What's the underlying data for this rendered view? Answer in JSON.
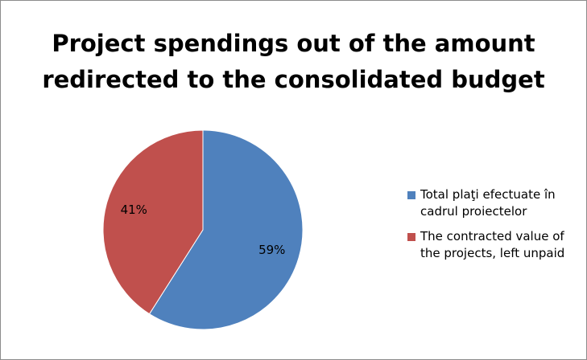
{
  "chart_data": {
    "type": "pie",
    "title_lines": [
      "Project spendings out of the amount",
      "redirected to the consolidated budget"
    ],
    "slices": [
      {
        "label": "Total plaţi efectuate în cadrul proiectelor",
        "value": 59,
        "display": "59%",
        "color": "#4F81BD"
      },
      {
        "label": "The contracted value of the projects, left unpaid",
        "value": 41,
        "display": "41%",
        "color": "#C0504D"
      }
    ],
    "legend_position": "right"
  }
}
